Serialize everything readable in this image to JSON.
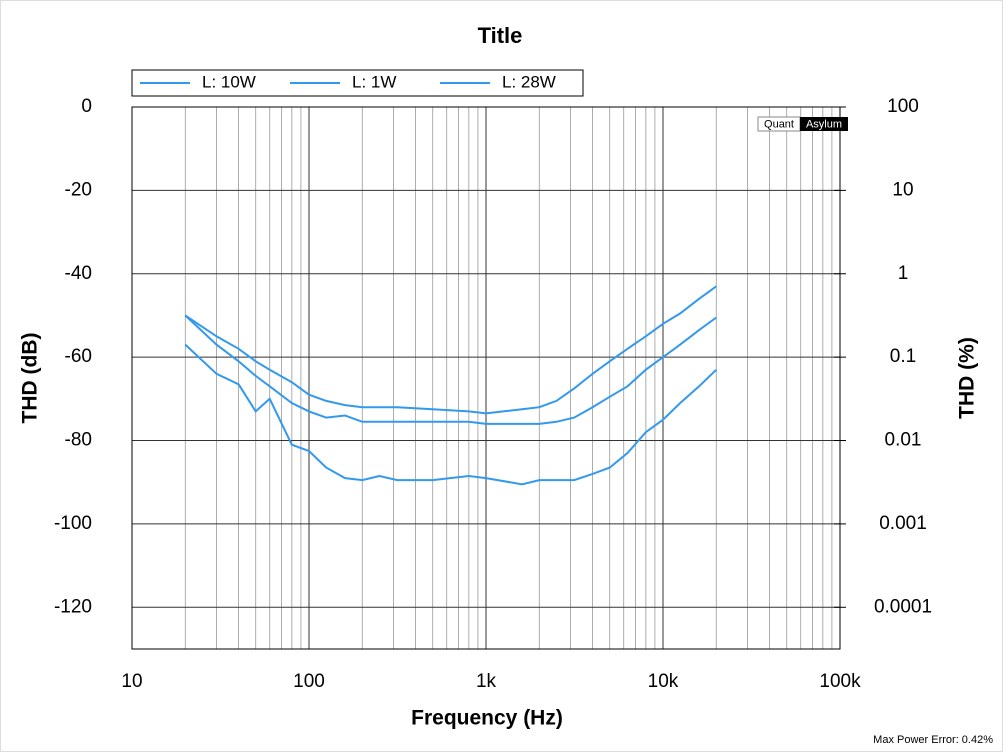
{
  "chart_data": {
    "type": "line",
    "title": "Title",
    "x_label": "Frequency (Hz)",
    "y_label": "THD (dB)",
    "y2_label": "THD (%)",
    "watermark": {
      "left": "Quant",
      "right": "Asylum"
    },
    "footnote": "Max Power Error: 0.42%",
    "x_log": true,
    "y2_log": true,
    "grid": true,
    "legend": "top-left",
    "xlim": [
      10,
      100000
    ],
    "xticks": [
      10,
      100,
      {
        "value": 1000,
        "label": "1k"
      },
      {
        "value": 10000,
        "label": "10k"
      },
      {
        "value": 100000,
        "label": "100k"
      }
    ],
    "xminorticks": [
      20,
      30,
      40,
      50,
      60,
      70,
      80,
      90,
      200,
      300,
      400,
      500,
      600,
      700,
      800,
      900,
      2000,
      3000,
      4000,
      5000,
      6000,
      7000,
      8000,
      9000,
      20000,
      30000,
      40000,
      50000,
      60000,
      70000,
      80000,
      90000
    ],
    "ylim": [
      -130,
      0
    ],
    "yticks": [
      0,
      -20,
      -40,
      -60,
      -80,
      -100,
      -120
    ],
    "y2lim": [
      3.16e-05,
      100
    ],
    "y2ticks": [
      100,
      10,
      1,
      0.1,
      0.01,
      0.001,
      0.0001
    ],
    "series": [
      {
        "name": "L: 10W",
        "color": "#3399ee",
        "x": [
          20,
          30,
          40,
          50,
          60,
          80,
          100,
          125,
          160,
          200,
          315,
          500,
          800,
          1000,
          1250,
          1600,
          2000,
          2500,
          3150,
          4000,
          5000,
          6300,
          8000,
          10000,
          12500,
          16000,
          20000
        ],
        "values": [
          -50,
          -55,
          -58,
          -61,
          -63,
          -66,
          -69,
          -70.5,
          -71.5,
          -72,
          -72,
          -72.5,
          -73,
          -73.5,
          -73,
          -72.5,
          -72,
          -70.5,
          -67.5,
          -64,
          -61,
          -58,
          -55,
          -52,
          -49.5,
          -46,
          -43
        ]
      },
      {
        "name": "L: 1W",
        "color": "#3399ee",
        "x": [
          20,
          30,
          40,
          50,
          60,
          80,
          100,
          125,
          160,
          200,
          315,
          500,
          800,
          1000,
          1600,
          2000,
          2500,
          3150,
          4000,
          5000,
          6300,
          8000,
          10000,
          12500,
          16000,
          20000
        ],
        "values": [
          -50,
          -57,
          -61,
          -64.5,
          -67,
          -71,
          -73,
          -74.5,
          -74,
          -75.5,
          -75.5,
          -75.5,
          -75.5,
          -76,
          -76,
          -76,
          -75.5,
          -74.5,
          -72,
          -69.5,
          -67,
          -63,
          -60,
          -57,
          -53.5,
          -50.5
        ]
      },
      {
        "name": "L: 28W",
        "color": "#3399ee",
        "x": [
          20,
          30,
          40,
          50,
          60,
          80,
          100,
          125,
          160,
          200,
          250,
          315,
          500,
          800,
          1000,
          1600,
          2000,
          2500,
          3150,
          4000,
          5000,
          6300,
          8000,
          10000,
          12500,
          16000,
          20000
        ],
        "values": [
          -57,
          -64,
          -66.5,
          -73,
          -70,
          -81,
          -82.5,
          -86.5,
          -89,
          -89.5,
          -88.5,
          -89.5,
          -89.5,
          -88.5,
          -89,
          -90.5,
          -89.5,
          -89.5,
          -89.5,
          -88,
          -86.5,
          -83,
          -78,
          -75,
          -71,
          -67,
          -63
        ]
      }
    ]
  }
}
